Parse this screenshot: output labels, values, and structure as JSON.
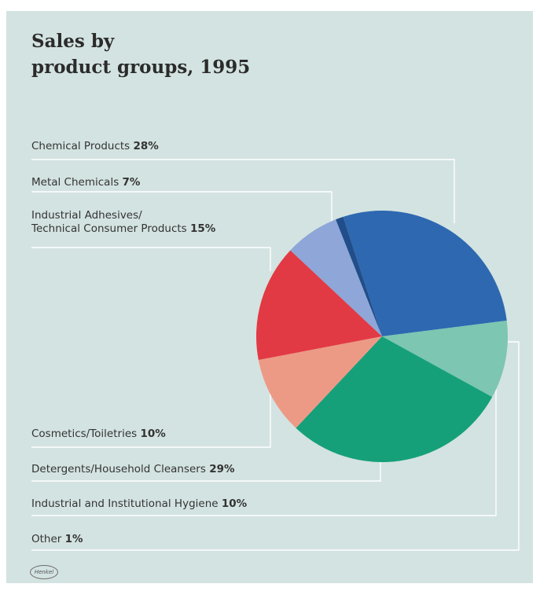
{
  "chart_data": {
    "type": "pie",
    "title_lines": [
      "Sales by",
      "product groups, 1995"
    ],
    "slices": [
      {
        "label": "Chemical Products",
        "value": 28,
        "color": "#2e68b1"
      },
      {
        "label": "Industrial and Institutional Hygiene",
        "value": 10,
        "color": "#7cc6b2"
      },
      {
        "label": "Detergents/Household Cleansers",
        "value": 29,
        "color": "#16a07a"
      },
      {
        "label": "Cosmetics/Toiletries",
        "value": 10,
        "color": "#ec9a86"
      },
      {
        "label": "Industrial Adhesives/ Technical Consumer Products",
        "value": 15,
        "color": "#e23a44"
      },
      {
        "label": "Metal Chemicals",
        "value": 7,
        "color": "#8ea6d8"
      },
      {
        "label": "Other",
        "value": 1,
        "color": "#214e8a"
      }
    ],
    "legend": {
      "chemical": {
        "text": "Chemical Products",
        "pct": "28%"
      },
      "metal": {
        "text": "Metal Chemicals",
        "pct": "7%"
      },
      "adhesives": {
        "text1": "Industrial Adhesives/",
        "text2": "Technical Consumer Products",
        "pct": "15%"
      },
      "cosmetics": {
        "text": "Cosmetics/Toiletries",
        "pct": "10%"
      },
      "detergents": {
        "text": "Detergents/Household Cleansers",
        "pct": "29%"
      },
      "hygiene": {
        "text": "Industrial and Institutional Hygiene",
        "pct": "10%"
      },
      "other": {
        "text": "Other",
        "pct": "1%"
      }
    }
  },
  "logo": {
    "text": "Henkel"
  },
  "colors": {
    "background": "#d3e3e1",
    "leader": "#ffffff",
    "text": "#333333"
  }
}
